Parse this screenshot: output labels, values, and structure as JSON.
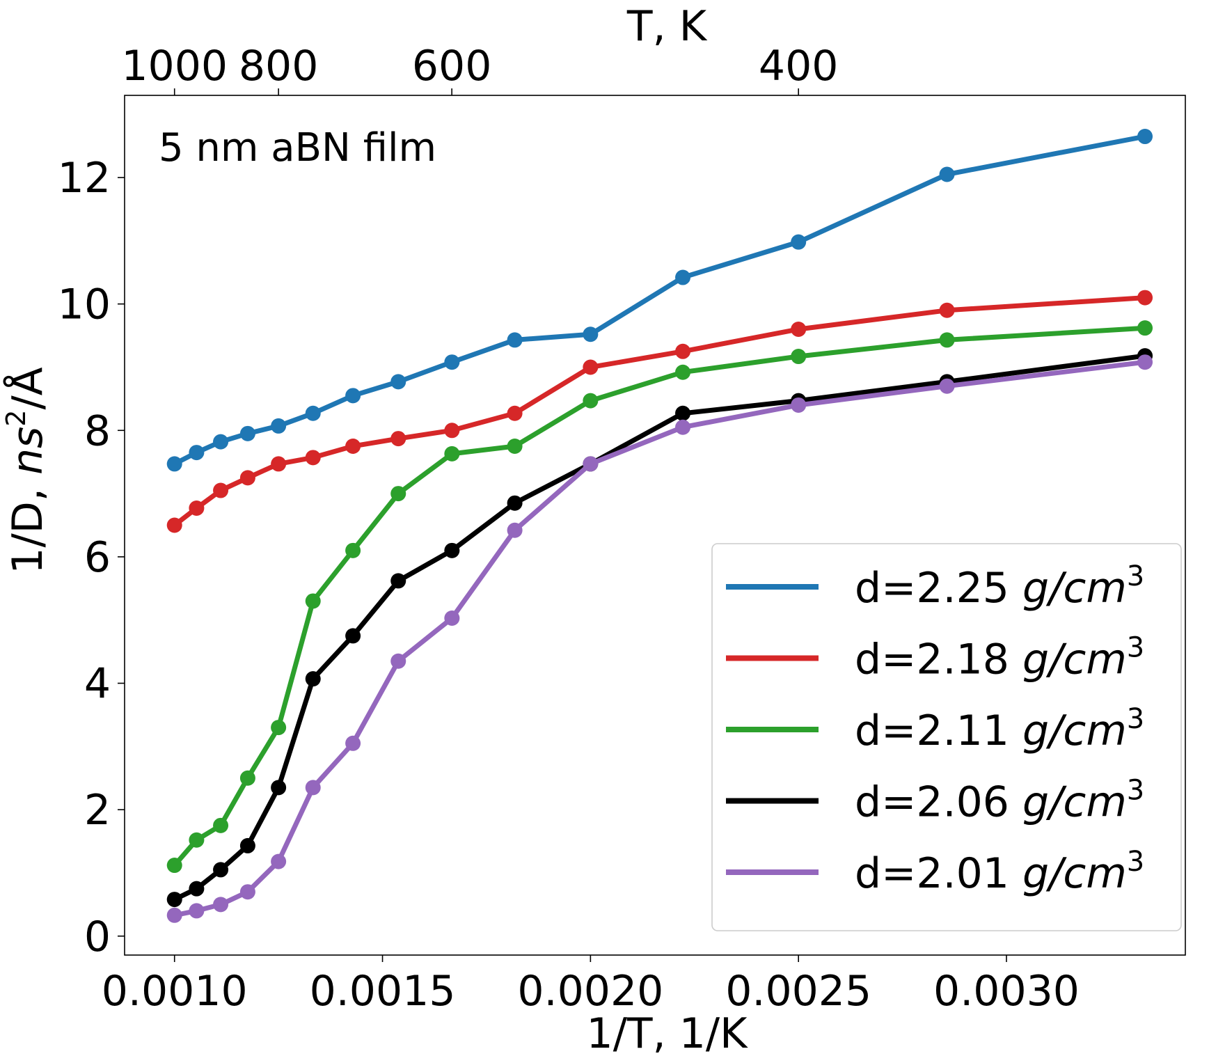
{
  "chart_data": {
    "type": "line",
    "title": "",
    "xlabel": "1/T, 1/K",
    "ylabel": "1/D, ns²/Å",
    "ylabel_prefix": "1/D, ",
    "ylabel_unit_base": "ns",
    "ylabel_unit_exp": "2",
    "ylabel_unit_tail": "/Å",
    "top_xlabel": "T, K",
    "annotation": "5 nm aBN film",
    "xlim": [
      0.00088,
      0.00343
    ],
    "ylim": [
      -0.3,
      13.3
    ],
    "x_ticks": [
      {
        "value": 0.001,
        "label": "0.0010"
      },
      {
        "value": 0.0015,
        "label": "0.0015"
      },
      {
        "value": 0.002,
        "label": "0.0020"
      },
      {
        "value": 0.0025,
        "label": "0.0025"
      },
      {
        "value": 0.003,
        "label": "0.0030"
      }
    ],
    "y_ticks": [
      {
        "value": 0,
        "label": "0"
      },
      {
        "value": 2,
        "label": "2"
      },
      {
        "value": 4,
        "label": "4"
      },
      {
        "value": 6,
        "label": "6"
      },
      {
        "value": 8,
        "label": "8"
      },
      {
        "value": 10,
        "label": "10"
      },
      {
        "value": 12,
        "label": "12"
      }
    ],
    "top_ticks": [
      {
        "value": 1000,
        "label": "1000"
      },
      {
        "value": 800,
        "label": "800"
      },
      {
        "value": 600,
        "label": "600"
      },
      {
        "value": 400,
        "label": "400"
      }
    ],
    "x": [
      0.001,
      0.001053,
      0.001111,
      0.001176,
      0.00125,
      0.001333,
      0.001429,
      0.001538,
      0.001667,
      0.001818,
      0.002,
      0.002222,
      0.0025,
      0.002857,
      0.003333
    ],
    "legend_position": "lower right",
    "series": [
      {
        "name": "d=2.25 ",
        "unit_base": "g/cm",
        "unit_exp": "3",
        "color": "#1f77b4",
        "values": [
          7.47,
          7.65,
          7.82,
          7.95,
          8.07,
          8.27,
          8.55,
          8.77,
          9.08,
          9.43,
          9.52,
          10.42,
          10.98,
          12.05,
          12.65
        ]
      },
      {
        "name": "d=2.18 ",
        "unit_base": "g/cm",
        "unit_exp": "3",
        "color": "#d62728",
        "values": [
          6.5,
          6.77,
          7.05,
          7.25,
          7.47,
          7.57,
          7.75,
          7.87,
          8.0,
          8.27,
          9.0,
          9.25,
          9.6,
          9.9,
          10.1
        ]
      },
      {
        "name": "d=2.11 ",
        "unit_base": "g/cm",
        "unit_exp": "3",
        "color": "#2ca02c",
        "values": [
          1.12,
          1.52,
          1.75,
          2.5,
          3.3,
          5.3,
          6.1,
          7.0,
          7.63,
          7.75,
          8.47,
          8.92,
          9.17,
          9.43,
          9.62
        ]
      },
      {
        "name": "d=2.06 ",
        "unit_base": "g/cm",
        "unit_exp": "3",
        "color": "#000000",
        "values": [
          0.58,
          0.75,
          1.05,
          1.43,
          2.35,
          4.07,
          4.75,
          5.62,
          6.1,
          6.85,
          7.47,
          8.27,
          8.47,
          8.77,
          9.18
        ]
      },
      {
        "name": "d=2.01 ",
        "unit_base": "g/cm",
        "unit_exp": "3",
        "color": "#9467bd",
        "values": [
          0.33,
          0.4,
          0.5,
          0.7,
          1.18,
          2.35,
          3.05,
          4.35,
          5.03,
          6.42,
          7.47,
          8.05,
          8.4,
          8.7,
          9.08
        ]
      }
    ]
  }
}
